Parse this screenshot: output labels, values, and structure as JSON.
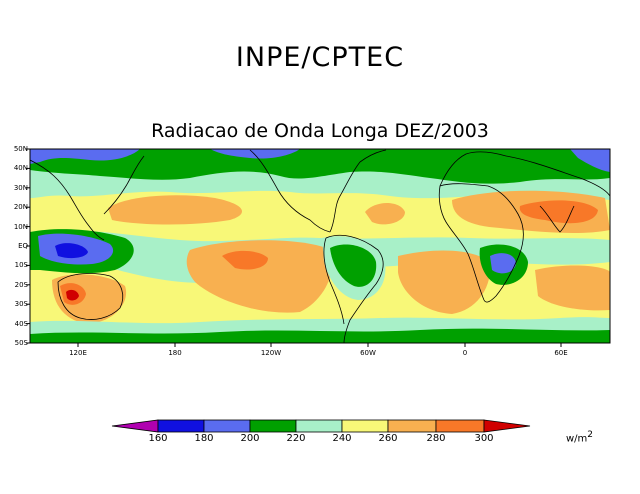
{
  "header": {
    "title": "INPE/CPTEC",
    "subtitle": "Radiacao de Onda Longa DEZ/2003"
  },
  "map": {
    "lat_labels": [
      "50N",
      "40N",
      "30N",
      "20N",
      "10N",
      "EQ",
      "10S",
      "20S",
      "30S",
      "40S",
      "50S"
    ],
    "lon_labels": [
      "120E",
      "180",
      "120W",
      "60W",
      "0",
      "60E"
    ]
  },
  "colorbar": {
    "levels": [
      "160",
      "180",
      "200",
      "220",
      "240",
      "260",
      "280",
      "300"
    ],
    "colors": [
      "#b000b0",
      "#1010e0",
      "#5a6cf0",
      "#00a000",
      "#a8f0c8",
      "#f8f878",
      "#f8b050",
      "#f87828",
      "#d00000"
    ],
    "units": "w/m",
    "units_exp": "2"
  }
}
